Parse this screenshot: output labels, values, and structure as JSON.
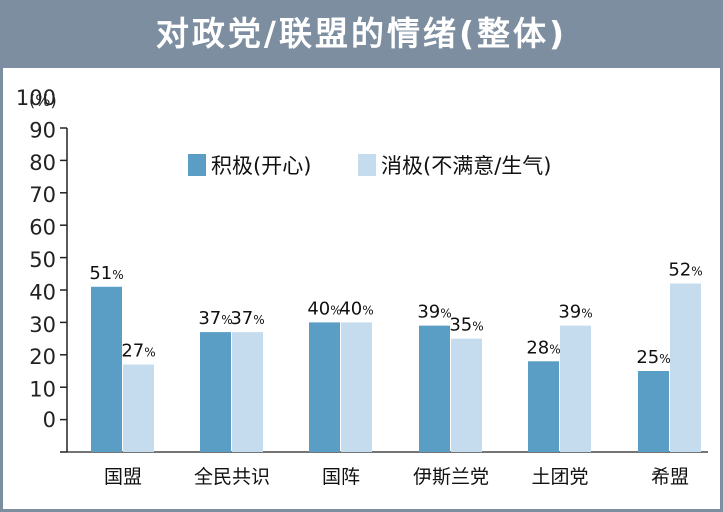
{
  "chart_data": {
    "type": "bar",
    "title": "对政党/联盟的情绪(整体)",
    "unit_label": "(%)",
    "ylim": [
      0,
      100
    ],
    "yticks": [
      "100",
      "90",
      "80",
      "70",
      "60",
      "50",
      "40",
      "30",
      "20",
      "10",
      "0"
    ],
    "categories": [
      "国盟",
      "全民共识",
      "国阵",
      "伊斯兰党",
      "土团党",
      "希盟"
    ],
    "series": [
      {
        "name": "积极(开心)",
        "color": "#5a9ec6",
        "values": [
          51,
          37,
          40,
          39,
          28,
          25
        ],
        "labels": [
          "51%",
          "37%",
          "40%",
          "39%",
          "28%",
          "25%"
        ]
      },
      {
        "name": "消极(不满意/生气)",
        "color": "#c5dcee",
        "values": [
          27,
          37,
          40,
          35,
          39,
          52
        ],
        "labels": [
          "27%",
          "37%",
          "40%",
          "35%",
          "39%",
          "52%"
        ]
      }
    ],
    "legend_position": "top-center",
    "grid": false
  }
}
